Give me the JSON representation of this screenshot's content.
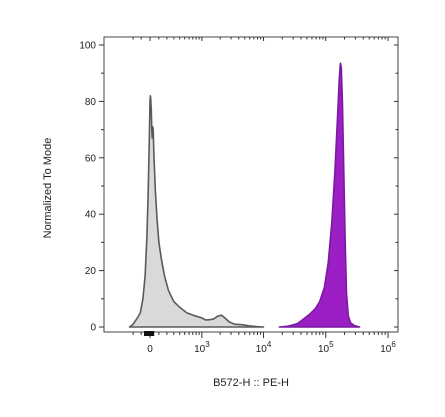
{
  "chart_data": {
    "type": "area",
    "title": "",
    "xlabel": "B572-H :: PE-H",
    "ylabel": "Normalized To Mode",
    "x_scale": "biexponential",
    "xlim": [
      -300,
      1000000
    ],
    "ylim": [
      0,
      100
    ],
    "grid": false,
    "legend": "none",
    "y_ticks": [
      "0",
      "20",
      "40",
      "60",
      "80",
      "100"
    ],
    "x_ticks": [
      {
        "base": "0",
        "exp": "",
        "value": 0
      },
      {
        "base": "10",
        "exp": "3",
        "value": 1000
      },
      {
        "base": "10",
        "exp": "4",
        "value": 10000
      },
      {
        "base": "10",
        "exp": "5",
        "value": 100000
      },
      {
        "base": "10",
        "exp": "6",
        "value": 1000000
      }
    ],
    "series": [
      {
        "fill": "#d9d9d9",
        "stroke": "#5a5a5a",
        "points": [
          [
            -250,
            0
          ],
          [
            -200,
            1
          ],
          [
            -150,
            3
          ],
          [
            -110,
            5
          ],
          [
            -80,
            10
          ],
          [
            -55,
            18
          ],
          [
            -35,
            32
          ],
          [
            -20,
            48
          ],
          [
            -10,
            63
          ],
          [
            -3,
            74
          ],
          [
            0,
            80
          ],
          [
            4,
            82
          ],
          [
            8,
            81
          ],
          [
            14,
            77
          ],
          [
            20,
            70
          ],
          [
            24,
            67
          ],
          [
            30,
            71
          ],
          [
            36,
            70
          ],
          [
            45,
            60
          ],
          [
            60,
            48
          ],
          [
            80,
            38
          ],
          [
            100,
            30
          ],
          [
            130,
            24
          ],
          [
            170,
            18
          ],
          [
            220,
            13
          ],
          [
            300,
            9
          ],
          [
            400,
            7
          ],
          [
            550,
            5
          ],
          [
            750,
            4
          ],
          [
            900,
            3.5
          ],
          [
            1000,
            3.2
          ],
          [
            1150,
            2.5
          ],
          [
            1350,
            2.6
          ],
          [
            1550,
            2.8
          ],
          [
            1800,
            3.8
          ],
          [
            2100,
            4.2
          ],
          [
            2400,
            3.2
          ],
          [
            2800,
            1.8
          ],
          [
            3400,
            1.0
          ],
          [
            4500,
            0.8
          ],
          [
            6000,
            0.4
          ],
          [
            8000,
            0.1
          ],
          [
            10000,
            0
          ]
        ]
      },
      {
        "fill": "#9c1fc6",
        "stroke": "#7a1aa0",
        "points": [
          [
            18000,
            0
          ],
          [
            25000,
            0.3
          ],
          [
            35000,
            1.2
          ],
          [
            45000,
            3
          ],
          [
            55000,
            4.5
          ],
          [
            68000,
            6.5
          ],
          [
            80000,
            9
          ],
          [
            95000,
            14
          ],
          [
            110000,
            23
          ],
          [
            125000,
            37
          ],
          [
            140000,
            55
          ],
          [
            155000,
            75
          ],
          [
            165000,
            88
          ],
          [
            172000,
            93.5
          ],
          [
            178000,
            92
          ],
          [
            185000,
            80
          ],
          [
            195000,
            55
          ],
          [
            205000,
            30
          ],
          [
            215000,
            12
          ],
          [
            230000,
            4
          ],
          [
            250000,
            1.5
          ],
          [
            290000,
            0.5
          ],
          [
            350000,
            0
          ]
        ]
      }
    ]
  }
}
